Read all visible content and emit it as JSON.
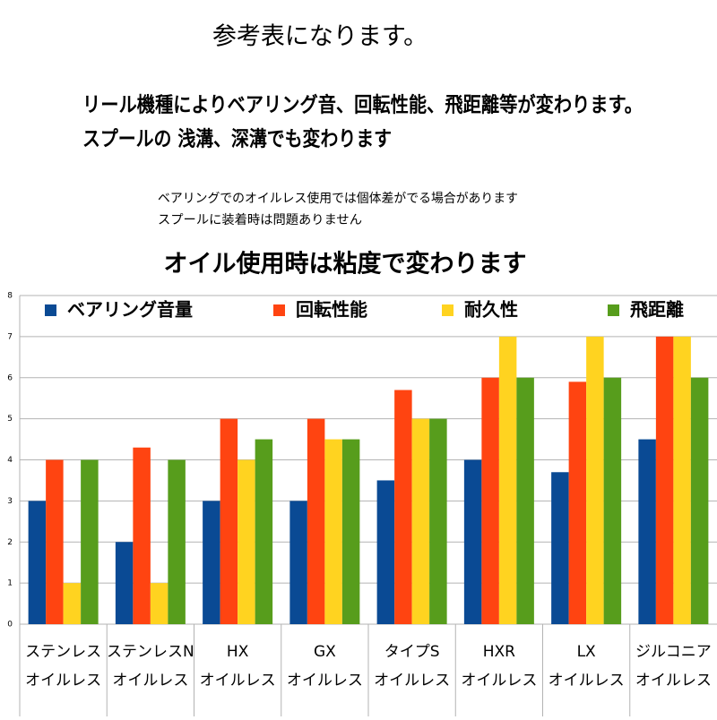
{
  "heading": "参考表になります。",
  "lines": [
    "リール機種によりベアリング音、回転性能、飛距離等が変わります。",
    "スプールの 浅溝、深溝でも変わります"
  ],
  "notes": [
    "ベアリングでのオイルレス使用では個体差がでる場合があります",
    "スプールに装着時は問題ありません"
  ],
  "subheading": "オイル使用時は粘度で変わります",
  "chart_data": {
    "type": "bar",
    "categories": [
      [
        "ステンレス",
        "オイルレス"
      ],
      [
        "ステンレスN",
        "オイルレス"
      ],
      [
        "HX",
        "オイルレス"
      ],
      [
        "GX",
        "オイルレス"
      ],
      [
        "タイプS",
        "オイルレス"
      ],
      [
        "HXR",
        "オイルレス"
      ],
      [
        "LX",
        "オイルレス"
      ],
      [
        "ジルコニア",
        "オイルレス"
      ]
    ],
    "series": [
      {
        "name": "ベアリング音量",
        "color": "#0a4a94",
        "values": [
          3,
          2,
          3,
          3,
          3.5,
          4,
          3.7,
          4.5
        ]
      },
      {
        "name": "回転性能",
        "color": "#ff4411",
        "values": [
          4,
          4.3,
          5,
          5,
          5.7,
          6,
          5.9,
          7
        ]
      },
      {
        "name": "耐久性",
        "color": "#ffd320",
        "values": [
          1,
          1,
          4,
          4.5,
          5,
          7,
          7,
          7
        ]
      },
      {
        "name": "飛距離",
        "color": "#579d1c",
        "values": [
          4,
          4,
          4.5,
          4.5,
          5,
          6,
          6,
          6
        ]
      }
    ],
    "ylim": [
      0,
      8
    ],
    "yticks": [
      0,
      1,
      2,
      3,
      4,
      5,
      6,
      7,
      8
    ],
    "grid": true,
    "legend": "top"
  }
}
